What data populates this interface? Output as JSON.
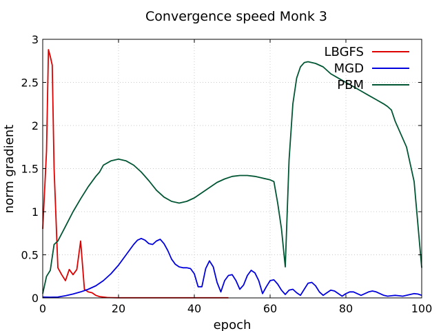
{
  "chart_data": {
    "type": "line",
    "title": "Convergence speed Monk 3",
    "xlabel": "epoch",
    "ylabel": "norm gradient",
    "xlim": [
      0,
      100
    ],
    "ylim": [
      0,
      3
    ],
    "x_ticks": [
      0,
      20,
      40,
      60,
      80,
      100
    ],
    "y_ticks": [
      0,
      0.5,
      1,
      1.5,
      2,
      2.5,
      3
    ],
    "grid": true,
    "legend_position": "top-right",
    "series": [
      {
        "name": "LBGFS",
        "color": "#dd0000",
        "x": [
          0,
          1,
          1.5,
          2,
          2.5,
          3,
          4,
          5,
          6,
          7,
          8,
          9,
          10,
          11,
          12,
          13,
          14,
          15,
          16,
          17,
          18,
          20,
          25,
          30,
          35,
          40,
          45,
          49
        ],
        "y": [
          0.8,
          1.7,
          2.88,
          2.8,
          2.7,
          1.5,
          0.35,
          0.27,
          0.2,
          0.33,
          0.27,
          0.33,
          0.66,
          0.1,
          0.07,
          0.06,
          0.03,
          0.015,
          0.01,
          0.005,
          0.003,
          0.002,
          0.002,
          0.002,
          0.002,
          0.002,
          0.002,
          0.002
        ]
      },
      {
        "name": "MGD",
        "color": "#0000dd",
        "x": [
          0,
          2,
          4,
          6,
          8,
          10,
          12,
          14,
          16,
          18,
          20,
          22,
          24,
          25,
          26,
          27,
          28,
          29,
          30,
          31,
          32,
          33,
          34,
          35,
          36,
          37,
          38,
          39,
          40,
          41,
          42,
          43,
          44,
          45,
          46,
          47,
          48,
          49,
          50,
          51,
          52,
          53,
          54,
          55,
          56,
          57,
          58,
          59,
          60,
          61,
          62,
          63,
          64,
          65,
          66,
          67,
          68,
          69,
          70,
          71,
          72,
          73,
          74,
          75,
          76,
          77,
          78,
          79,
          80,
          81,
          82,
          83,
          84,
          85,
          86,
          87,
          88,
          89,
          90,
          91,
          92,
          93,
          94,
          95,
          96,
          97,
          98,
          99,
          100
        ],
        "y": [
          0.01,
          0.008,
          0.01,
          0.025,
          0.045,
          0.07,
          0.1,
          0.14,
          0.2,
          0.28,
          0.38,
          0.5,
          0.62,
          0.67,
          0.69,
          0.67,
          0.63,
          0.62,
          0.66,
          0.68,
          0.63,
          0.55,
          0.45,
          0.39,
          0.36,
          0.35,
          0.35,
          0.34,
          0.28,
          0.13,
          0.13,
          0.34,
          0.43,
          0.36,
          0.18,
          0.07,
          0.2,
          0.26,
          0.27,
          0.2,
          0.1,
          0.15,
          0.26,
          0.32,
          0.29,
          0.2,
          0.05,
          0.13,
          0.2,
          0.21,
          0.16,
          0.09,
          0.04,
          0.09,
          0.1,
          0.06,
          0.03,
          0.1,
          0.17,
          0.18,
          0.14,
          0.07,
          0.03,
          0.06,
          0.09,
          0.08,
          0.05,
          0.02,
          0.05,
          0.07,
          0.07,
          0.05,
          0.03,
          0.05,
          0.07,
          0.08,
          0.07,
          0.05,
          0.03,
          0.02,
          0.025,
          0.03,
          0.025,
          0.02,
          0.03,
          0.04,
          0.05,
          0.045,
          0.03
        ]
      },
      {
        "name": "PBM",
        "color": "#005533",
        "x": [
          0,
          1,
          2,
          3,
          4,
          6,
          8,
          10,
          12,
          14,
          15,
          16,
          18,
          20,
          22,
          24,
          26,
          28,
          30,
          32,
          34,
          36,
          38,
          40,
          42,
          44,
          46,
          48,
          50,
          52,
          54,
          56,
          58,
          60,
          61,
          62,
          63,
          64,
          65,
          66,
          67,
          68,
          69,
          70,
          72,
          74,
          76,
          78,
          80,
          82,
          84,
          86,
          88,
          90,
          91,
          92,
          93,
          94,
          96,
          98,
          100
        ],
        "y": [
          0.05,
          0.25,
          0.32,
          0.62,
          0.66,
          0.83,
          1.0,
          1.15,
          1.29,
          1.41,
          1.46,
          1.54,
          1.59,
          1.61,
          1.59,
          1.54,
          1.46,
          1.36,
          1.25,
          1.17,
          1.12,
          1.1,
          1.12,
          1.16,
          1.22,
          1.28,
          1.34,
          1.38,
          1.41,
          1.42,
          1.42,
          1.41,
          1.39,
          1.37,
          1.35,
          1.1,
          0.8,
          0.36,
          1.6,
          2.25,
          2.55,
          2.68,
          2.73,
          2.74,
          2.72,
          2.68,
          2.6,
          2.55,
          2.5,
          2.45,
          2.4,
          2.35,
          2.3,
          2.25,
          2.22,
          2.18,
          2.05,
          1.95,
          1.75,
          1.35,
          0.35
        ]
      }
    ]
  }
}
